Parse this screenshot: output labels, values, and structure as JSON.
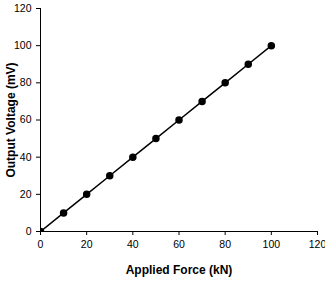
{
  "chart_data": {
    "type": "line",
    "x_label": "Applied Force (kN)",
    "y_label": "Output Voltage (mV)",
    "x": [
      0,
      10,
      20,
      30,
      40,
      50,
      60,
      70,
      80,
      90,
      100
    ],
    "values": [
      0,
      10,
      20,
      30,
      40,
      50,
      60,
      70,
      80,
      90,
      100
    ],
    "color": "#000000",
    "marker": "circle",
    "line_style": "solid",
    "xlim": [
      0,
      120
    ],
    "xticks": [
      0,
      20,
      40,
      60,
      80,
      100,
      120
    ],
    "ylim": [
      0,
      120
    ],
    "yticks": [
      0,
      20,
      40,
      60,
      80,
      100,
      120
    ],
    "grid": false
  }
}
